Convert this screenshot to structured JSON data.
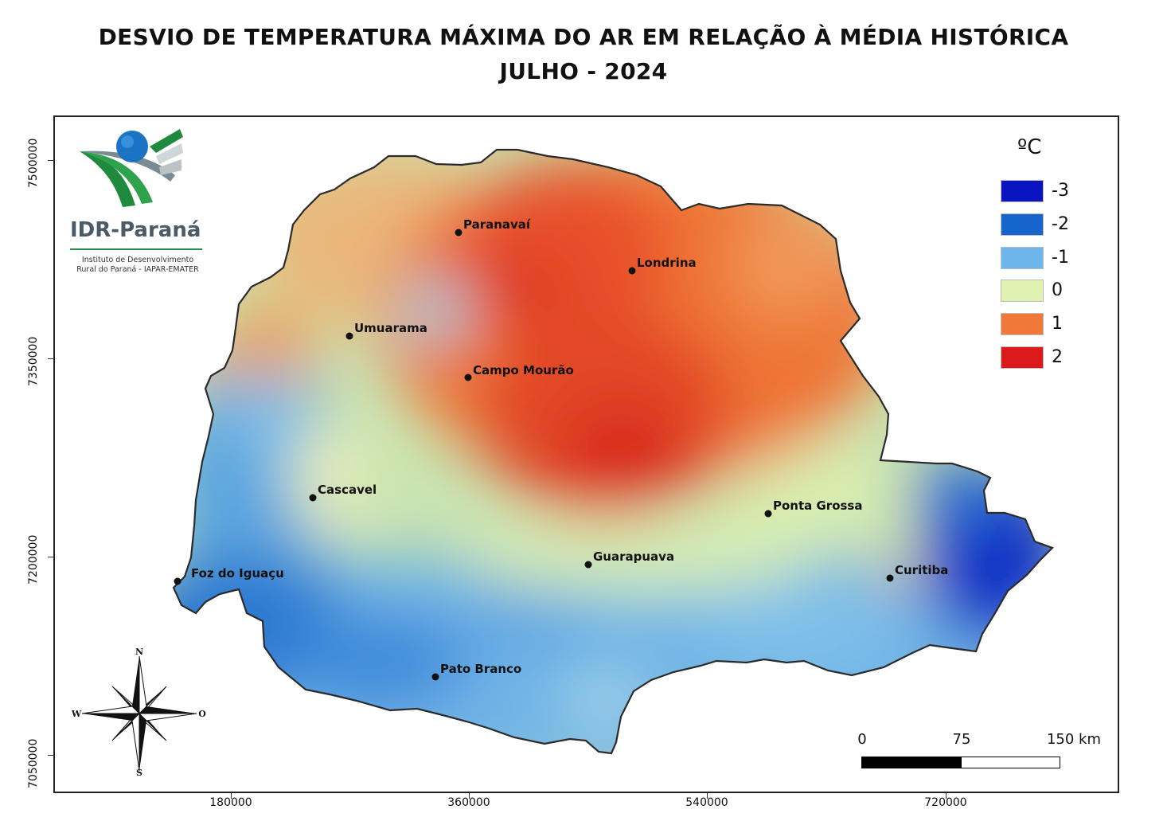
{
  "title": {
    "line1": "DESVIO DE TEMPERATURA MÁXIMA DO AR EM RELAÇÃO À MÉDIA HISTÓRICA",
    "line2": "JULHO - 2024"
  },
  "axes": {
    "y_labels": [
      "7500000",
      "7350000",
      "7200000",
      "7050000"
    ],
    "x_labels": [
      "180000",
      "360000",
      "540000",
      "720000"
    ]
  },
  "legend": {
    "unit": "ºC",
    "items": [
      {
        "label": "-3",
        "color": "#0a14c0"
      },
      {
        "label": "-2",
        "color": "#1565cc"
      },
      {
        "label": "-1",
        "color": "#6db6ec"
      },
      {
        "label": "0",
        "color": "#dff2b2"
      },
      {
        "label": "1",
        "color": "#f07838"
      },
      {
        "label": "2",
        "color": "#dc1a1c"
      }
    ]
  },
  "cities": [
    {
      "name": "Paranavaí"
    },
    {
      "name": "Londrina"
    },
    {
      "name": "Umuarama"
    },
    {
      "name": "Campo Mourão"
    },
    {
      "name": "Cascavel"
    },
    {
      "name": "Ponta Grossa"
    },
    {
      "name": "Guarapuava"
    },
    {
      "name": "Foz do Iguaçu"
    },
    {
      "name": "Curitiba"
    },
    {
      "name": "Pato Branco"
    }
  ],
  "logo": {
    "name": "IDR-Paraná",
    "subtitle_line1": "Instituto de Desenvolvimento",
    "subtitle_line2": "Rural do Paraná - IAPAR-EMATER"
  },
  "scale_bar": {
    "labels": [
      "0",
      "75",
      "150 km"
    ]
  },
  "compass": {
    "north": "N",
    "south": "S",
    "west": "W",
    "east": "O"
  }
}
